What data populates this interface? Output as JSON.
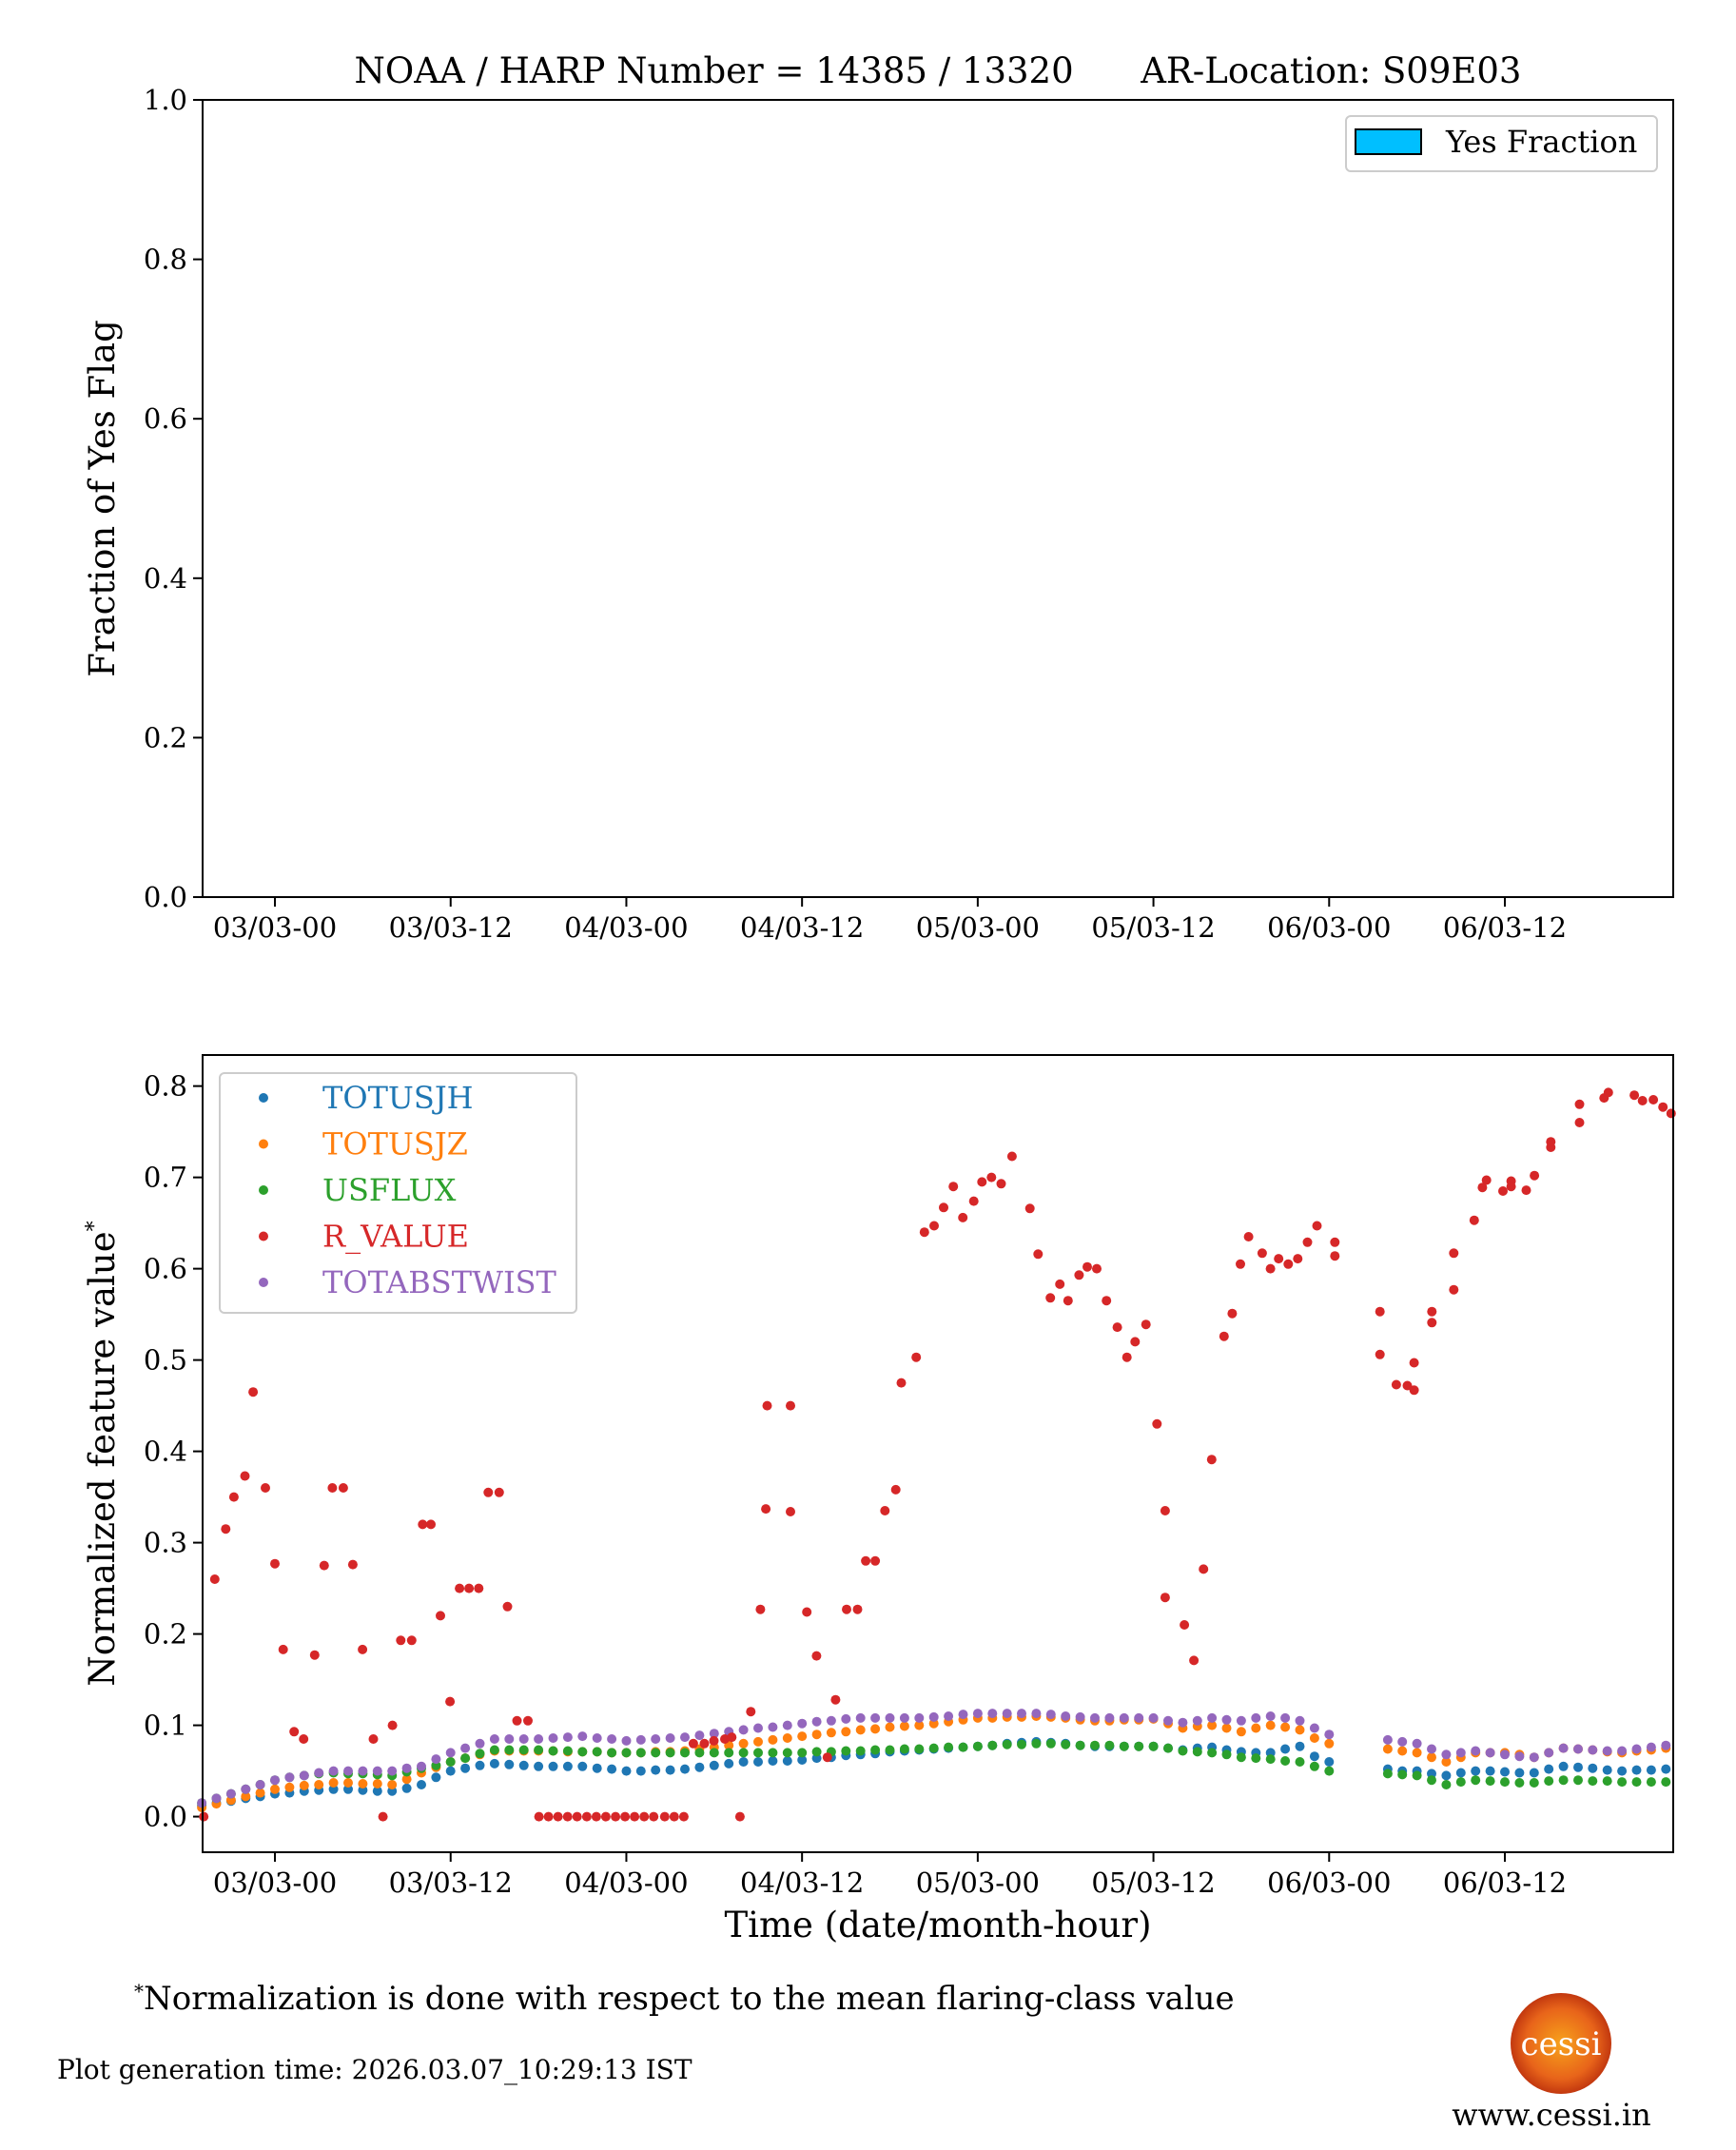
{
  "chart_data": [
    {
      "type": "bar",
      "title": "NOAA / HARP Number = 14385 / 13320      AR-Location: S09E03",
      "ylabel": "Fraction of Yes Flag",
      "xlabel": "",
      "ylim": [
        0,
        1
      ],
      "xlim_hours": [
        -4.94,
        95.5
      ],
      "yticks": [
        "0.0",
        "0.2",
        "0.4",
        "0.6",
        "0.8",
        "1.0"
      ],
      "ytick_values": [
        0,
        0.2,
        0.4,
        0.6,
        0.8,
        1.0
      ],
      "xtick_hours": [
        0,
        12,
        24,
        36,
        48,
        60,
        72,
        84
      ],
      "xticks": [
        "03/03-00",
        "03/03-12",
        "04/03-00",
        "04/03-12",
        "05/03-00",
        "05/03-12",
        "06/03-00",
        "06/03-12"
      ],
      "legend": {
        "label": "Yes Fraction",
        "color": "#00BFFF",
        "placement": "top-right"
      },
      "values": []
    },
    {
      "type": "scatter",
      "ylabel": "Normalized feature value",
      "ylabel_marker": "*",
      "xlabel": "Time (date/month-hour)",
      "ylim": [
        -0.039,
        0.834
      ],
      "xlim_hours": [
        -4.94,
        95.5
      ],
      "yticks": [
        "0.0",
        "0.1",
        "0.2",
        "0.3",
        "0.4",
        "0.5",
        "0.6",
        "0.7",
        "0.8"
      ],
      "ytick_values": [
        0,
        0.1,
        0.2,
        0.3,
        0.4,
        0.5,
        0.6,
        0.7,
        0.8
      ],
      "xtick_hours": [
        0,
        12,
        24,
        36,
        48,
        60,
        72,
        84
      ],
      "xticks": [
        "03/03-00",
        "03/03-12",
        "04/03-00",
        "04/03-12",
        "05/03-00",
        "05/03-12",
        "06/03-00",
        "06/03-12"
      ],
      "legend_placement": "top-left",
      "x_hours": [
        -5,
        -4,
        -3,
        -2,
        -1,
        0,
        1,
        2,
        3,
        4,
        5,
        6,
        7,
        8,
        9,
        10,
        11,
        12,
        13,
        14,
        15,
        16,
        17,
        18,
        19,
        20,
        21,
        22,
        23,
        24,
        25,
        26,
        27,
        28,
        29,
        30,
        31,
        32,
        33,
        34,
        35,
        36,
        37,
        38,
        39,
        40,
        41,
        42,
        43,
        44,
        45,
        46,
        47,
        48,
        49,
        50,
        51,
        52,
        53,
        54,
        55,
        56,
        57,
        58,
        59,
        60,
        61,
        62,
        63,
        64,
        65,
        66,
        67,
        68,
        69,
        70,
        71,
        72,
        76,
        77,
        78,
        79,
        80,
        81,
        82,
        83,
        84,
        85,
        86,
        87,
        88,
        89,
        90,
        91,
        92,
        93,
        94,
        95
      ],
      "series": [
        {
          "name": "TOTUSJH",
          "color": "#1f77b4",
          "values": [
            0.012,
            0.015,
            0.017,
            0.02,
            0.022,
            0.025,
            0.026,
            0.028,
            0.029,
            0.03,
            0.03,
            0.029,
            0.028,
            0.028,
            0.031,
            0.035,
            0.043,
            0.05,
            0.053,
            0.056,
            0.058,
            0.057,
            0.056,
            0.055,
            0.055,
            0.055,
            0.055,
            0.053,
            0.052,
            0.05,
            0.05,
            0.051,
            0.051,
            0.052,
            0.054,
            0.056,
            0.058,
            0.06,
            0.06,
            0.061,
            0.061,
            0.062,
            0.064,
            0.065,
            0.067,
            0.068,
            0.069,
            0.071,
            0.072,
            0.073,
            0.074,
            0.075,
            0.076,
            0.077,
            0.078,
            0.08,
            0.081,
            0.082,
            0.081,
            0.08,
            0.078,
            0.077,
            0.077,
            0.077,
            0.077,
            0.077,
            0.075,
            0.073,
            0.075,
            0.076,
            0.073,
            0.071,
            0.07,
            0.07,
            0.074,
            0.077,
            0.066,
            0.06,
            0.052,
            0.05,
            0.05,
            0.047,
            0.045,
            0.048,
            0.05,
            0.05,
            0.049,
            0.048,
            0.048,
            0.052,
            0.055,
            0.054,
            0.053,
            0.051,
            0.05,
            0.051,
            0.051,
            0.052
          ]
        },
        {
          "name": "TOTUSJZ",
          "color": "#ff7f0e",
          "values": [
            0.01,
            0.014,
            0.018,
            0.022,
            0.026,
            0.03,
            0.032,
            0.034,
            0.035,
            0.037,
            0.037,
            0.036,
            0.036,
            0.035,
            0.041,
            0.048,
            0.054,
            0.06,
            0.064,
            0.068,
            0.072,
            0.072,
            0.072,
            0.072,
            0.072,
            0.071,
            0.071,
            0.071,
            0.07,
            0.07,
            0.07,
            0.071,
            0.071,
            0.072,
            0.074,
            0.076,
            0.078,
            0.08,
            0.082,
            0.084,
            0.086,
            0.088,
            0.09,
            0.092,
            0.093,
            0.095,
            0.096,
            0.098,
            0.099,
            0.1,
            0.102,
            0.104,
            0.106,
            0.108,
            0.108,
            0.109,
            0.109,
            0.11,
            0.109,
            0.108,
            0.106,
            0.105,
            0.105,
            0.106,
            0.106,
            0.107,
            0.102,
            0.097,
            0.099,
            0.1,
            0.097,
            0.093,
            0.097,
            0.1,
            0.098,
            0.095,
            0.086,
            0.08,
            0.074,
            0.072,
            0.07,
            0.065,
            0.06,
            0.065,
            0.07,
            0.07,
            0.07,
            0.068,
            0.065,
            0.07,
            0.075,
            0.074,
            0.073,
            0.071,
            0.07,
            0.072,
            0.073,
            0.075
          ]
        },
        {
          "name": "USFLUX",
          "color": "#2ca02c",
          "values": [
            0.015,
            0.02,
            0.025,
            0.03,
            0.035,
            0.04,
            0.043,
            0.045,
            0.047,
            0.048,
            0.047,
            0.047,
            0.046,
            0.045,
            0.049,
            0.053,
            0.056,
            0.06,
            0.064,
            0.069,
            0.073,
            0.073,
            0.073,
            0.073,
            0.072,
            0.072,
            0.071,
            0.071,
            0.07,
            0.07,
            0.07,
            0.07,
            0.07,
            0.07,
            0.07,
            0.07,
            0.07,
            0.07,
            0.07,
            0.07,
            0.07,
            0.07,
            0.071,
            0.071,
            0.072,
            0.072,
            0.073,
            0.073,
            0.074,
            0.074,
            0.075,
            0.076,
            0.076,
            0.077,
            0.078,
            0.079,
            0.079,
            0.08,
            0.08,
            0.079,
            0.078,
            0.078,
            0.078,
            0.077,
            0.077,
            0.077,
            0.075,
            0.072,
            0.071,
            0.07,
            0.068,
            0.065,
            0.064,
            0.063,
            0.061,
            0.06,
            0.055,
            0.05,
            0.047,
            0.046,
            0.045,
            0.04,
            0.035,
            0.038,
            0.04,
            0.039,
            0.038,
            0.037,
            0.037,
            0.039,
            0.04,
            0.04,
            0.039,
            0.039,
            0.038,
            0.038,
            0.038,
            0.038
          ]
        },
        {
          "name": "TOTABSTWIST",
          "color": "#9467bd",
          "values": [
            0.015,
            0.02,
            0.025,
            0.03,
            0.035,
            0.04,
            0.043,
            0.045,
            0.048,
            0.05,
            0.05,
            0.05,
            0.05,
            0.05,
            0.053,
            0.055,
            0.063,
            0.07,
            0.075,
            0.08,
            0.085,
            0.085,
            0.085,
            0.085,
            0.086,
            0.087,
            0.088,
            0.086,
            0.085,
            0.083,
            0.084,
            0.085,
            0.086,
            0.087,
            0.089,
            0.091,
            0.093,
            0.095,
            0.097,
            0.098,
            0.1,
            0.102,
            0.104,
            0.105,
            0.107,
            0.108,
            0.108,
            0.108,
            0.108,
            0.108,
            0.109,
            0.11,
            0.112,
            0.113,
            0.113,
            0.113,
            0.113,
            0.113,
            0.112,
            0.11,
            0.109,
            0.108,
            0.108,
            0.108,
            0.108,
            0.108,
            0.105,
            0.103,
            0.105,
            0.108,
            0.106,
            0.105,
            0.108,
            0.11,
            0.108,
            0.105,
            0.097,
            0.09,
            0.084,
            0.082,
            0.08,
            0.074,
            0.068,
            0.07,
            0.072,
            0.07,
            0.068,
            0.066,
            0.065,
            0.07,
            0.075,
            0.074,
            0.073,
            0.072,
            0.072,
            0.074,
            0.076,
            0.078
          ]
        },
        {
          "name": "R_VALUE",
          "color": "#d62728",
          "x_hours": [
            -4.86,
            -4.11,
            -3.36,
            -2.8,
            -2.05,
            -1.49,
            -0.65,
            0,
            0.56,
            1.31,
            1.96,
            2.71,
            3.36,
            3.92,
            4.67,
            5.32,
            5.98,
            6.72,
            7.38,
            8.03,
            8.59,
            9.34,
            10.09,
            10.65,
            11.3,
            11.96,
            12.61,
            13.26,
            13.92,
            14.57,
            15.32,
            15.88,
            16.53,
            17.28,
            18.03,
            18.68,
            19.33,
            19.99,
            20.64,
            21.3,
            21.95,
            22.6,
            23.26,
            23.91,
            24.56,
            25.22,
            25.87,
            26.62,
            27.27,
            27.93,
            28.58,
            29.33,
            29.98,
            30.73,
            31.2,
            31.76,
            32.5,
            33.16,
            33.53,
            33.62,
            35.21,
            35.21,
            36.33,
            36.99,
            37.73,
            38.29,
            39.04,
            39.79,
            40.35,
            41.0,
            41.66,
            42.4,
            42.78,
            43.8,
            44.36,
            45.02,
            45.67,
            46.33,
            46.98,
            47.73,
            48.29,
            48.94,
            49.6,
            50.34,
            51.56,
            52.12,
            52.96,
            53.61,
            54.17,
            54.92,
            55.48,
            56.13,
            56.79,
            57.53,
            58.19,
            58.75,
            59.49,
            60.24,
            60.8,
            60.8,
            62.11,
            62.76,
            63.42,
            63.98,
            64.82,
            65.38,
            65.94,
            66.5,
            67.43,
            67.99,
            68.55,
            69.21,
            69.86,
            70.52,
            71.17,
            72.39,
            72.39,
            75.47,
            75.47,
            76.59,
            77.34,
            77.8,
            77.8,
            79.02,
            79.02,
            80.51,
            80.51,
            81.91,
            82.47,
            82.75,
            83.87,
            84.43,
            84.43,
            85.46,
            86.02,
            87.14,
            87.14,
            89.1,
            89.1,
            90.78,
            91.07,
            92.84,
            93.4,
            94.14,
            94.8,
            95.36
          ],
          "values": [
            0.0,
            0.26,
            0.315,
            0.35,
            0.373,
            0.465,
            0.36,
            0.277,
            0.183,
            0.093,
            0.085,
            0.177,
            0.275,
            0.36,
            0.36,
            0.276,
            0.183,
            0.085,
            0.0,
            0.1,
            0.193,
            0.193,
            0.32,
            0.32,
            0.22,
            0.126,
            0.25,
            0.25,
            0.25,
            0.355,
            0.355,
            0.23,
            0.105,
            0.105,
            0,
            0,
            0,
            0,
            0,
            0,
            0,
            0,
            0,
            0,
            0,
            0,
            0,
            0,
            0,
            0,
            0.08,
            0.08,
            0.083,
            0.085,
            0.087,
            0.0,
            0.115,
            0.227,
            0.337,
            0.45,
            0.45,
            0.334,
            0.224,
            0.176,
            0.065,
            0.128,
            0.227,
            0.227,
            0.28,
            0.28,
            0.335,
            0.358,
            0.475,
            0.503,
            0.64,
            0.647,
            0.667,
            0.69,
            0.656,
            0.674,
            0.695,
            0.7,
            0.693,
            0.723,
            0.666,
            0.616,
            0.568,
            0.583,
            0.565,
            0.593,
            0.602,
            0.6,
            0.565,
            0.536,
            0.503,
            0.52,
            0.539,
            0.43,
            0.335,
            0.24,
            0.21,
            0.171,
            0.271,
            0.391,
            0.526,
            0.551,
            0.605,
            0.635,
            0.617,
            0.6,
            0.611,
            0.605,
            0.611,
            0.629,
            0.647,
            0.629,
            0.614,
            0.553,
            0.506,
            0.473,
            0.472,
            0.467,
            0.497,
            0.541,
            0.553,
            0.577,
            0.617,
            0.653,
            0.689,
            0.697,
            0.685,
            0.696,
            0.69,
            0.686,
            0.702,
            0.733,
            0.739,
            0.76,
            0.78,
            0.787,
            0.793,
            0.79,
            0.784,
            0.785,
            0.777,
            0.77
          ]
        }
      ]
    }
  ],
  "footnote": {
    "marker": "*",
    "text": "Normalization is done with respect to the mean flaring-class value"
  },
  "generation_time": "Plot generation time: 2026.03.07_10:29:13 IST",
  "logo": {
    "text": "cessi"
  },
  "website": "www.cessi.in"
}
